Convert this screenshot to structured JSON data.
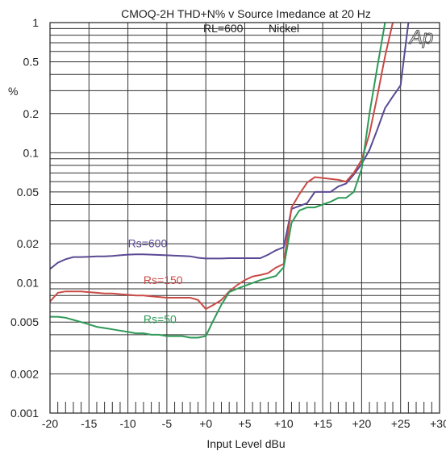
{
  "chart_data": {
    "type": "line",
    "title": "CMOQ-2H   THD+N% v Source Imedance at 20 Hz",
    "subtitle_left": "RL=600",
    "subtitle_right": "Nickel",
    "logo": "Ap",
    "xlabel": "Input Level  dBu",
    "ylabel": "%",
    "xlim": [
      -20,
      30
    ],
    "ylim": [
      0.001,
      1
    ],
    "yscale": "log",
    "grid": true,
    "x_ticks": [
      -20,
      -15,
      -10,
      -5,
      0,
      5,
      10,
      15,
      20,
      25,
      30
    ],
    "x_tick_labels": [
      "-20",
      "-15",
      "-10",
      "-5",
      "+0",
      "+5",
      "+10",
      "+15",
      "+20",
      "+25",
      "+30"
    ],
    "y_ticks": [
      0.001,
      0.002,
      0.005,
      0.01,
      0.02,
      0.05,
      0.1,
      0.2,
      0.5,
      1
    ],
    "y_tick_labels": [
      "0.001",
      "0.002",
      "0.005",
      "0.01",
      "0.02",
      "0.05",
      "0.1",
      "0.2",
      "0.5",
      "1"
    ],
    "series": [
      {
        "name": "Rs=600",
        "color": "#5a4a94",
        "x": [
          -20,
          -19,
          -18,
          -17,
          -16,
          -15,
          -14,
          -13,
          -12,
          -11,
          -10,
          -9,
          -8,
          -7,
          -6,
          -5,
          -4,
          -3,
          -2,
          -1,
          0,
          1,
          2,
          3,
          4,
          5,
          6,
          7,
          8,
          9,
          10,
          11,
          12,
          13,
          14,
          15,
          16,
          17,
          18,
          19,
          20,
          21,
          22,
          23,
          24,
          25,
          26
        ],
        "y": [
          0.0128,
          0.0143,
          0.0152,
          0.0158,
          0.0158,
          0.0159,
          0.016,
          0.016,
          0.0161,
          0.0163,
          0.0165,
          0.0166,
          0.0166,
          0.0165,
          0.0164,
          0.0163,
          0.0162,
          0.0161,
          0.016,
          0.0156,
          0.0154,
          0.0154,
          0.0154,
          0.0155,
          0.0155,
          0.0155,
          0.0155,
          0.0155,
          0.0165,
          0.0178,
          0.0188,
          0.037,
          0.039,
          0.041,
          0.05,
          0.05,
          0.05,
          0.055,
          0.058,
          0.068,
          0.082,
          0.105,
          0.15,
          0.22,
          0.27,
          0.33,
          1.0
        ],
        "label": "Rs=600"
      },
      {
        "name": "Rs=150",
        "color": "#c94a45",
        "x": [
          -20,
          -19,
          -18,
          -17,
          -16,
          -15,
          -14,
          -13,
          -12,
          -11,
          -10,
          -9,
          -8,
          -7,
          -6,
          -5,
          -4,
          -3,
          -2,
          -1,
          0,
          1,
          2,
          3,
          4,
          5,
          6,
          7,
          8,
          9,
          10,
          11,
          12,
          13,
          14,
          15,
          16,
          17,
          18,
          19,
          20,
          21,
          22,
          23,
          24
        ],
        "y": [
          0.0072,
          0.0084,
          0.0086,
          0.0086,
          0.0086,
          0.0085,
          0.0084,
          0.0083,
          0.0083,
          0.0082,
          0.0081,
          0.008,
          0.008,
          0.0079,
          0.0078,
          0.0077,
          0.0077,
          0.0077,
          0.0077,
          0.0074,
          0.0063,
          0.0068,
          0.0074,
          0.0086,
          0.0096,
          0.0105,
          0.0112,
          0.0115,
          0.0119,
          0.0131,
          0.014,
          0.038,
          0.048,
          0.059,
          0.065,
          0.064,
          0.063,
          0.062,
          0.06,
          0.07,
          0.088,
          0.14,
          0.27,
          0.55,
          1.0
        ],
        "label": "Rs=150"
      },
      {
        "name": "Rs=50",
        "color": "#2e9a58",
        "x": [
          -20,
          -19,
          -18,
          -17,
          -16,
          -15,
          -14,
          -13,
          -12,
          -11,
          -10,
          -9,
          -8,
          -7,
          -6,
          -5,
          -4,
          -3,
          -2,
          -1,
          0,
          1,
          2,
          3,
          4,
          5,
          6,
          7,
          8,
          9,
          10,
          11,
          12,
          13,
          14,
          15,
          16,
          17,
          18,
          19,
          20,
          21,
          22,
          23
        ],
        "y": [
          0.0055,
          0.0055,
          0.0054,
          0.0052,
          0.005,
          0.0048,
          0.0046,
          0.0045,
          0.0044,
          0.0043,
          0.0042,
          0.0041,
          0.0041,
          0.004,
          0.004,
          0.0039,
          0.0039,
          0.0039,
          0.0038,
          0.0038,
          0.0039,
          0.0052,
          0.0068,
          0.0085,
          0.009,
          0.0095,
          0.01,
          0.0105,
          0.0109,
          0.0113,
          0.0132,
          0.029,
          0.036,
          0.038,
          0.038,
          0.04,
          0.042,
          0.045,
          0.045,
          0.05,
          0.075,
          0.2,
          0.45,
          1.0
        ],
        "label": "Rs=50"
      }
    ]
  }
}
